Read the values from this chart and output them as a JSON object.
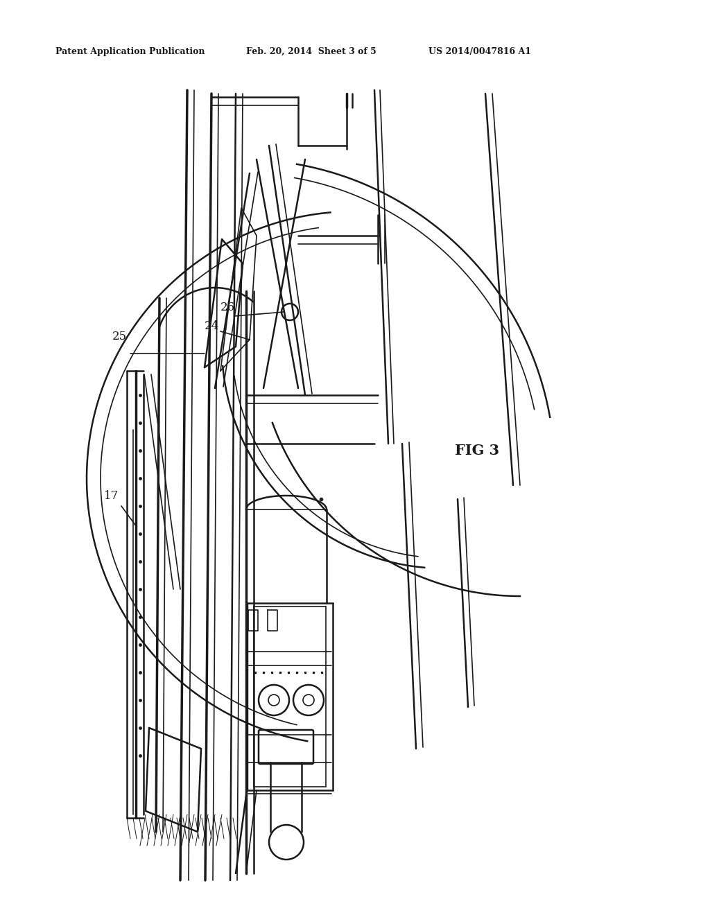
{
  "bg_color": "#ffffff",
  "header_text1": "Patent Application Publication",
  "header_text2": "Feb. 20, 2014  Sheet 3 of 5",
  "header_text3": "US 2014/0047816 A1",
  "fig_label": "FIG 3",
  "color": "#1a1a1a"
}
